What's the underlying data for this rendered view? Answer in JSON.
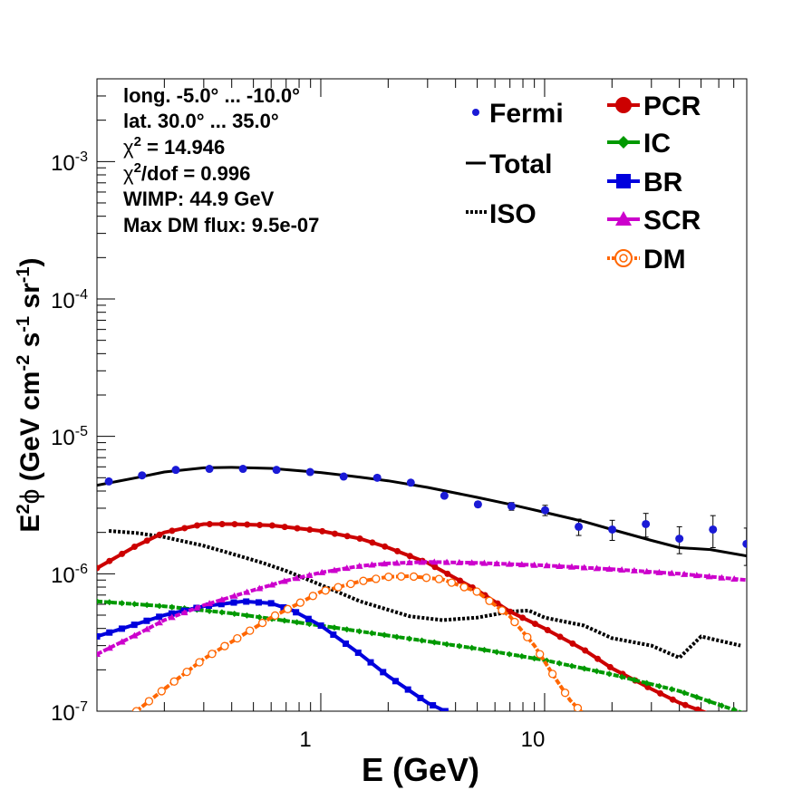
{
  "chart_data": {
    "type": "line",
    "title": "",
    "xlabel": "E (GeV)",
    "ylabel_parts": {
      "e": "E",
      "exp2": "2",
      "phi": "ϕ",
      "open": " (GeV cm",
      "m2": "-2",
      "s": " s",
      "m1a": "-1",
      "sr": " sr",
      "m1b": "-1",
      "close": ")"
    },
    "xscale": "log",
    "yscale": "log",
    "xlim": [
      0.1,
      80
    ],
    "ylim": [
      1e-07,
      0.004
    ],
    "x_tick_labels": [
      "1",
      "10"
    ],
    "y_tick_labels": [
      {
        "base": "10",
        "exp": "-7"
      },
      {
        "base": "10",
        "exp": "-6"
      },
      {
        "base": "10",
        "exp": "-5"
      },
      {
        "base": "10",
        "exp": "-4"
      },
      {
        "base": "10",
        "exp": "-3"
      }
    ],
    "info_box": {
      "longitude": "long. -5.0° ... -10.0°",
      "latitude": "lat. 30.0° ... 35.0°",
      "chi2": {
        "sym": "χ",
        "sup": "2",
        "rest": " = 14.946"
      },
      "chi2dof": {
        "sym": "χ",
        "sup": "2",
        "rest": "/dof = 0.996"
      },
      "wimp": "WIMP: 44.9 GeV",
      "max_dm_flux": "Max DM flux: 9.5e-07"
    },
    "legend_left": [
      {
        "key": "fermi",
        "label": "Fermi"
      },
      {
        "key": "total",
        "label": "Total"
      },
      {
        "key": "iso",
        "label": "ISO"
      }
    ],
    "legend_right": [
      {
        "key": "pcr",
        "label": "PCR"
      },
      {
        "key": "ic",
        "label": "IC"
      },
      {
        "key": "br",
        "label": "BR"
      },
      {
        "key": "scr",
        "label": "SCR"
      },
      {
        "key": "dm",
        "label": "DM"
      }
    ],
    "colors": {
      "fermi": "#1a1ad6",
      "total": "#000000",
      "iso": "#000000",
      "pcr": "#cc0000",
      "ic": "#009900",
      "br": "#0000dd",
      "scr": "#cc00cc",
      "dm": "#ff6600"
    },
    "fermi": {
      "x": [
        0.113,
        0.159,
        0.225,
        0.318,
        0.449,
        0.634,
        0.896,
        1.265,
        1.787,
        2.524,
        3.566,
        5.037,
        7.115,
        10.05,
        14.2,
        20.05,
        28.33,
        40.01,
        56.52,
        79.83
      ],
      "y": [
        4.7e-06,
        5.2e-06,
        5.7e-06,
        5.8e-06,
        5.8e-06,
        5.7e-06,
        5.5e-06,
        5.1e-06,
        5e-06,
        4.6e-06,
        3.7e-06,
        3.2e-06,
        3.1e-06,
        2.9e-06,
        2.2e-06,
        2.1e-06,
        2.3e-06,
        1.8e-06,
        2.1e-06,
        1.65e-06
      ],
      "err": [
        1.5e-07,
        1.5e-07,
        1.5e-07,
        1.5e-07,
        1.5e-07,
        1.5e-07,
        1.5e-07,
        1.5e-07,
        1.5e-07,
        1.5e-07,
        1.5e-07,
        1.5e-07,
        2e-07,
        2.5e-07,
        3e-07,
        3.5e-07,
        4.5e-07,
        4e-07,
        5.5e-07,
        5e-07
      ]
    },
    "series": [
      {
        "key": "total",
        "name": "Total",
        "x": [
          0.1,
          0.15,
          0.2,
          0.3,
          0.4,
          0.6,
          1,
          1.5,
          2,
          3,
          5,
          7,
          10,
          15,
          20,
          30,
          40,
          55,
          80
        ],
        "y": [
          4.4e-06,
          5e-06,
          5.5e-06,
          5.9e-06,
          5.95e-06,
          5.85e-06,
          5.45e-06,
          5.05e-06,
          4.75e-06,
          4.25e-06,
          3.6e-06,
          3.2e-06,
          2.8e-06,
          2.4e-06,
          2.1e-06,
          1.75e-06,
          1.55e-06,
          1.5e-06,
          1.35e-06
        ]
      },
      {
        "key": "iso",
        "name": "ISO",
        "x": [
          0.113,
          0.15,
          0.2,
          0.3,
          0.4,
          0.55,
          0.7,
          1,
          1.5,
          2.5,
          3.5,
          5,
          7,
          8.5,
          10,
          15,
          20,
          30,
          40,
          50,
          75
        ],
        "y": [
          2.05e-06,
          1.98e-06,
          1.85e-06,
          1.6e-06,
          1.4e-06,
          1.2e-06,
          1.05e-06,
          8.3e-07,
          6.3e-07,
          4.9e-07,
          4.6e-07,
          4.8e-07,
          5.3e-07,
          5.4e-07,
          4.8e-07,
          4.2e-07,
          3.4e-07,
          3e-07,
          2.45e-07,
          3.5e-07,
          3e-07
        ]
      },
      {
        "key": "pcr",
        "name": "PCR",
        "x": [
          0.1,
          0.15,
          0.2,
          0.3,
          0.4,
          0.6,
          1,
          1.5,
          2,
          3,
          5,
          7,
          10,
          15,
          20,
          30,
          40,
          55
        ],
        "y": [
          1.1e-06,
          1.6e-06,
          2e-06,
          2.3e-06,
          2.3e-06,
          2.25e-06,
          2.05e-06,
          1.8e-06,
          1.55e-06,
          1.2e-06,
          7.6e-07,
          5.3e-07,
          4e-07,
          2.8e-07,
          2.05e-07,
          1.45e-07,
          1.15e-07,
          9.5e-08
        ]
      },
      {
        "key": "ic",
        "name": "IC",
        "x": [
          0.1,
          0.2,
          0.4,
          1,
          2,
          5,
          10,
          20,
          40,
          80
        ],
        "y": [
          6.3e-07,
          5.8e-07,
          5.15e-07,
          4.2e-07,
          3.55e-07,
          2.85e-07,
          2.35e-07,
          1.85e-07,
          1.4e-07,
          9.5e-08
        ]
      },
      {
        "key": "br",
        "name": "BR",
        "x": [
          0.1,
          0.15,
          0.2,
          0.3,
          0.45,
          0.6,
          0.75,
          1,
          1.5,
          2,
          3,
          3.6
        ],
        "y": [
          3.5e-07,
          4.3e-07,
          5e-07,
          5.8e-07,
          6.3e-07,
          6.1e-07,
          5.4e-07,
          4.2e-07,
          2.6e-07,
          1.8e-07,
          1.15e-07,
          1e-07
        ]
      },
      {
        "key": "scr",
        "name": "SCR",
        "x": [
          0.1,
          0.15,
          0.2,
          0.3,
          0.5,
          0.7,
          1,
          1.5,
          2,
          3,
          5,
          10,
          20,
          40,
          80
        ],
        "y": [
          2.6e-07,
          3.6e-07,
          4.6e-07,
          5.9e-07,
          7.6e-07,
          8.9e-07,
          1.02e-06,
          1.14e-06,
          1.19e-06,
          1.22e-06,
          1.2e-06,
          1.15e-06,
          1.08e-06,
          1e-06,
          9e-07
        ]
      },
      {
        "key": "dm",
        "name": "DM",
        "x": [
          0.15,
          0.2,
          0.3,
          0.4,
          0.6,
          0.8,
          1,
          1.5,
          2,
          2.5,
          3.5,
          5,
          7,
          9,
          11,
          13,
          14.5,
          16
        ],
        "y": [
          1e-07,
          1.45e-07,
          2.4e-07,
          3.2e-07,
          4.8e-07,
          6.1e-07,
          7.4e-07,
          8.8e-07,
          9.5e-07,
          9.6e-07,
          9.1e-07,
          7.4e-07,
          4.9e-07,
          3e-07,
          1.8e-07,
          1.2e-07,
          1e-07,
          9e-08
        ]
      }
    ]
  }
}
